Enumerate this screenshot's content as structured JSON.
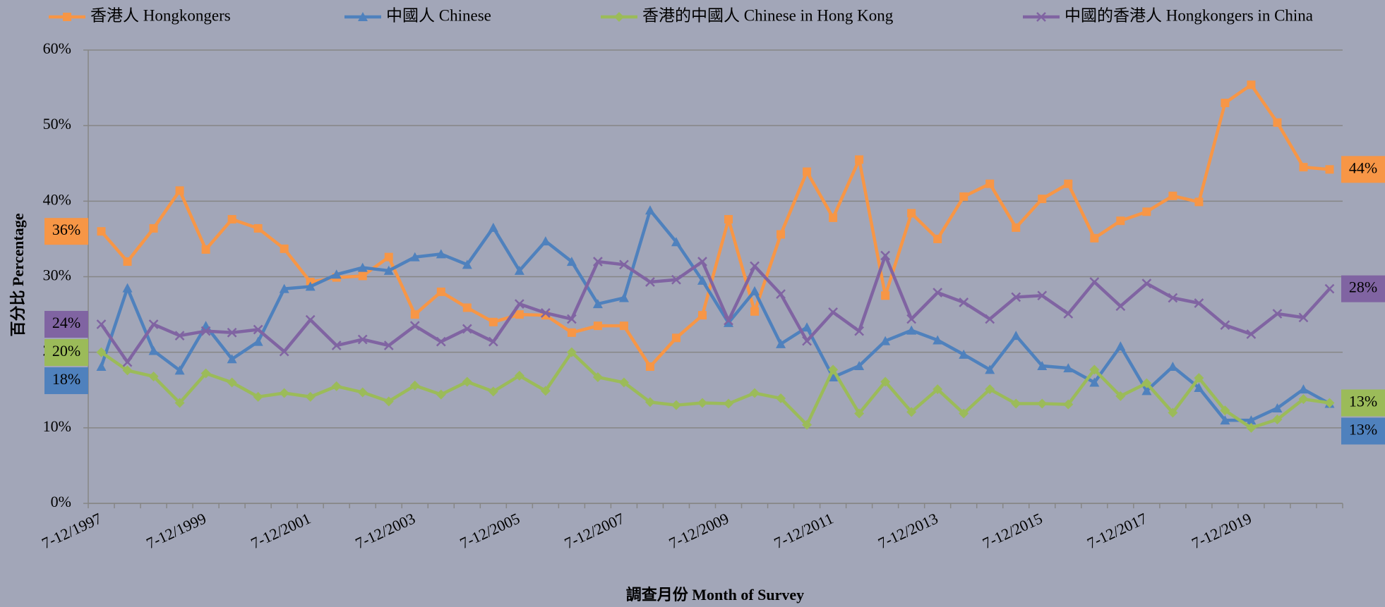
{
  "chart_data": {
    "type": "line",
    "x_label": "調查月份 Month of Survey",
    "y_label": "百分比 Percentage",
    "categories": [
      "7-12/1997",
      null,
      null,
      null,
      "7-12/1999",
      null,
      null,
      null,
      "7-12/2001",
      null,
      null,
      null,
      "7-12/2003",
      null,
      null,
      null,
      "7-12/2005",
      null,
      null,
      null,
      "7-12/2007",
      null,
      null,
      null,
      "7-12/2009",
      null,
      null,
      null,
      "7-12/2011",
      null,
      null,
      null,
      "7-12/2013",
      null,
      null,
      null,
      "7-12/2015",
      null,
      null,
      null,
      "7-12/2017",
      null,
      null,
      null,
      "7-12/2019",
      null,
      null,
      null
    ],
    "ylim": [
      0,
      60
    ],
    "yticks": [
      {
        "value": 0,
        "label": "0%"
      },
      {
        "value": 10,
        "label": "10%"
      },
      {
        "value": 20,
        "label": "20%"
      },
      {
        "value": 30,
        "label": "30%"
      },
      {
        "value": 40,
        "label": "40%"
      },
      {
        "value": 50,
        "label": "50%"
      },
      {
        "value": 60,
        "label": "60%"
      }
    ],
    "grid": true,
    "legend": "top",
    "series": [
      {
        "name": "香港人 Hongkongers",
        "color": "#f79646",
        "marker": "square",
        "values": [
          36.0,
          32.0,
          36.4,
          41.4,
          33.6,
          37.6,
          36.4,
          33.7,
          29.3,
          29.9,
          30.1,
          32.6,
          25.0,
          28.0,
          25.9,
          24.0,
          25.0,
          24.9,
          22.6,
          23.5,
          23.5,
          18.1,
          21.9,
          24.9,
          37.6,
          25.4,
          35.6,
          43.9,
          37.8,
          45.5,
          27.5,
          38.4,
          35.0,
          40.6,
          42.3,
          36.5,
          40.3,
          42.3,
          35.1,
          37.4,
          38.6,
          40.7,
          39.9,
          53.0,
          55.4,
          50.4,
          44.5,
          44.2
        ],
        "value_labels": [
          "36%",
          null,
          null,
          null,
          null,
          null,
          null,
          null,
          null,
          null,
          null,
          null,
          null,
          null,
          null,
          null,
          null,
          null,
          null,
          null,
          null,
          null,
          null,
          null,
          null,
          null,
          null,
          null,
          null,
          null,
          null,
          null,
          null,
          null,
          null,
          null,
          null,
          null,
          null,
          null,
          null,
          null,
          null,
          null,
          null,
          null,
          null,
          "44%"
        ]
      },
      {
        "name": "中國人 Chinese",
        "color": "#4f81bd",
        "marker": "triangle",
        "values": [
          18.1,
          28.5,
          20.2,
          17.6,
          23.5,
          19.1,
          21.4,
          28.4,
          28.7,
          30.3,
          31.2,
          30.8,
          32.6,
          33.0,
          31.6,
          36.5,
          30.8,
          34.7,
          32.0,
          26.4,
          27.2,
          38.8,
          34.6,
          29.5,
          23.9,
          28.1,
          21.1,
          23.3,
          16.7,
          18.2,
          21.5,
          22.9,
          21.6,
          19.7,
          17.7,
          22.2,
          18.2,
          17.9,
          16.0,
          20.8,
          14.9,
          18.1,
          15.3,
          11.0,
          11.0,
          12.6,
          15.1,
          13.2
        ],
        "value_labels": [
          "18%",
          null,
          null,
          null,
          null,
          null,
          null,
          null,
          null,
          null,
          null,
          null,
          null,
          null,
          null,
          null,
          null,
          null,
          null,
          null,
          null,
          null,
          null,
          null,
          null,
          null,
          null,
          null,
          null,
          null,
          null,
          null,
          null,
          null,
          null,
          null,
          null,
          null,
          null,
          null,
          null,
          null,
          null,
          null,
          null,
          null,
          null,
          "13%"
        ]
      },
      {
        "name": "香港的中國人 Chinese in Hong Kong",
        "color": "#9bbb59",
        "marker": "diamond",
        "values": [
          20.0,
          17.6,
          16.8,
          13.3,
          17.2,
          16.0,
          14.1,
          14.6,
          14.1,
          15.5,
          14.7,
          13.5,
          15.6,
          14.4,
          16.1,
          14.8,
          16.9,
          14.9,
          20.0,
          16.7,
          16.0,
          13.4,
          13.0,
          13.3,
          13.2,
          14.6,
          13.9,
          10.4,
          17.7,
          11.9,
          16.1,
          12.1,
          15.1,
          11.9,
          15.1,
          13.2,
          13.2,
          13.1,
          17.7,
          14.2,
          15.9,
          12.0,
          16.6,
          12.3,
          10.0,
          11.1,
          13.8,
          13.3
        ],
        "value_labels": [
          "20%",
          null,
          null,
          null,
          null,
          null,
          null,
          null,
          null,
          null,
          null,
          null,
          null,
          null,
          null,
          null,
          null,
          null,
          null,
          null,
          null,
          null,
          null,
          null,
          null,
          null,
          null,
          null,
          null,
          null,
          null,
          null,
          null,
          null,
          null,
          null,
          null,
          null,
          null,
          null,
          null,
          null,
          null,
          null,
          null,
          null,
          null,
          "13%"
        ]
      },
      {
        "name": "中國的香港人 Hongkongers in China",
        "color": "#8064a2",
        "marker": "x",
        "values": [
          23.7,
          18.7,
          23.7,
          22.2,
          22.8,
          22.6,
          23.0,
          20.1,
          24.3,
          20.9,
          21.7,
          20.9,
          23.5,
          21.4,
          23.1,
          21.4,
          26.4,
          25.2,
          24.4,
          32.0,
          31.6,
          29.3,
          29.6,
          32.0,
          24.2,
          31.4,
          27.7,
          21.5,
          25.3,
          22.8,
          32.8,
          24.4,
          27.9,
          26.6,
          24.4,
          27.3,
          27.5,
          25.1,
          29.3,
          26.1,
          29.1,
          27.2,
          26.5,
          23.6,
          22.4,
          25.1,
          24.6,
          28.4
        ],
        "value_labels": [
          "24%",
          null,
          null,
          null,
          null,
          null,
          null,
          null,
          null,
          null,
          null,
          null,
          null,
          null,
          null,
          null,
          null,
          null,
          null,
          null,
          null,
          null,
          null,
          null,
          null,
          null,
          null,
          null,
          null,
          null,
          null,
          null,
          null,
          null,
          null,
          null,
          null,
          null,
          null,
          null,
          null,
          null,
          null,
          null,
          null,
          null,
          null,
          "28%"
        ]
      }
    ]
  }
}
